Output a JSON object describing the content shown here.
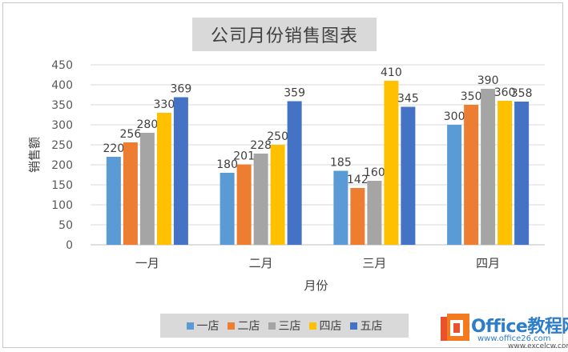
{
  "chart_data": {
    "type": "bar",
    "title": "公司月份销售图表",
    "xlabel": "月份",
    "ylabel": "销售额",
    "ylim": [
      0,
      450
    ],
    "yticks": [
      0,
      50,
      100,
      150,
      200,
      250,
      300,
      350,
      400,
      450
    ],
    "grid": true,
    "legend_position": "bottom",
    "categories": [
      "一月",
      "二月",
      "三月",
      "四月"
    ],
    "series": [
      {
        "name": "一店",
        "color": "#5b9bd5",
        "values": [
          220,
          180,
          185,
          300
        ]
      },
      {
        "name": "二店",
        "color": "#ed7d31",
        "values": [
          256,
          201,
          142,
          350
        ]
      },
      {
        "name": "三店",
        "color": "#a5a5a5",
        "values": [
          280,
          228,
          160,
          390
        ]
      },
      {
        "name": "四店",
        "color": "#ffc000",
        "values": [
          330,
          250,
          410,
          360
        ]
      },
      {
        "name": "五店",
        "color": "#4472c4",
        "values": [
          369,
          359,
          345,
          358
        ]
      }
    ]
  },
  "watermark": {
    "logo_icon": "office-logo-icon",
    "brand": "Office教程网",
    "url": "www.office26.com",
    "url2": "www.excelcw.com"
  }
}
